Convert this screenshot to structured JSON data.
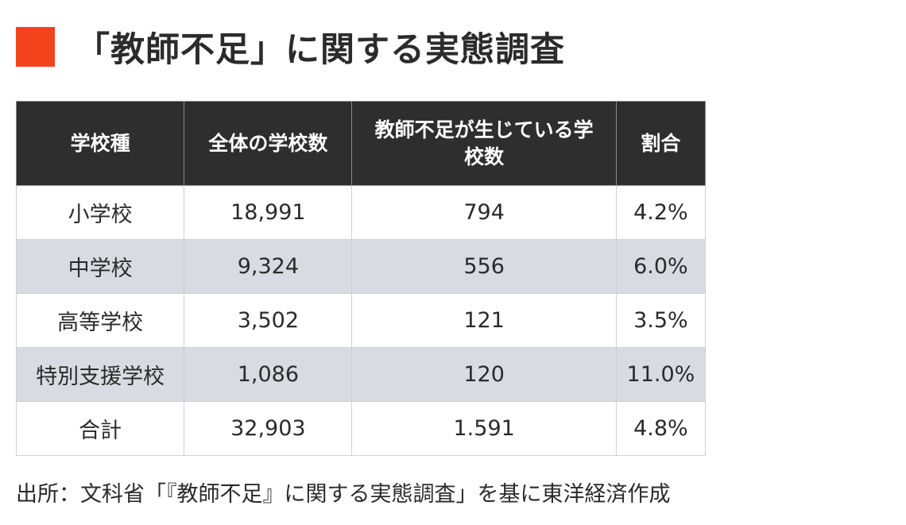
{
  "title": {
    "text": "「教師不足」に関する実態調査",
    "accent_color": "#f4421c"
  },
  "table": {
    "header_bg": "#2e2e2e",
    "shaded_row_bg": "#d8dbe1",
    "columns": [
      "学校種",
      "全体の学校数",
      "教師不足が生じている学校数",
      "割合"
    ],
    "rows": [
      [
        "小学校",
        "18,991",
        "794",
        "4.2%"
      ],
      [
        "中学校",
        "9,324",
        "556",
        "6.0%"
      ],
      [
        "高等学校",
        "3,502",
        "121",
        "3.5%"
      ],
      [
        "特別支援学校",
        "1,086",
        "120",
        "11.0%"
      ],
      [
        "合計",
        "32,903",
        "1.591",
        "4.8%"
      ]
    ]
  },
  "source": "出所：文科省「『教師不足』に関する実態調査」を基に東洋経済作成"
}
